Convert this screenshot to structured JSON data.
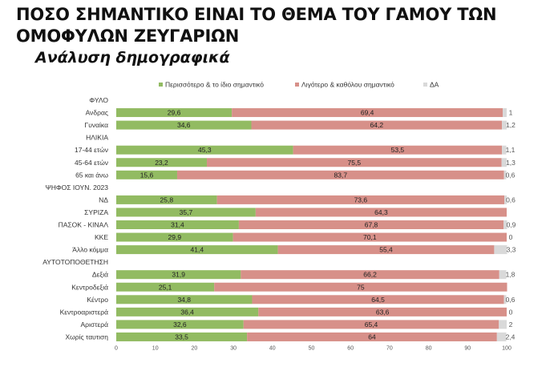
{
  "header": {
    "title_line1": "ΠΟΣΟ ΣΗΜΑΝΤΙΚΟ ΕΙΝΑΙ ΤΟ ΘΕΜΑ ΤΟΥ ΓΑΜΟΥ ΤΩΝ",
    "title_line2": "ΟΜΟΦΥΛΩΝ ΖΕΥΓΑΡΙΩΝ",
    "subtitle": "Ανάλυση δημογραφικά"
  },
  "chart_data": {
    "type": "bar",
    "orientation": "horizontal",
    "stacked": true,
    "xlim": [
      0,
      100
    ],
    "x_ticks": [
      0,
      10,
      20,
      30,
      40,
      50,
      60,
      70,
      80,
      90,
      100
    ],
    "legend_position": "top",
    "series": [
      {
        "name": "Περισσότερο & το ίδιο σημαντικό",
        "color": "#92bb62"
      },
      {
        "name": "Λιγότερο & καθόλου σημαντικό",
        "color": "#d79089"
      },
      {
        "name": "ΔΑ",
        "color": "#d9d9d9"
      }
    ],
    "rows": [
      {
        "label": "ΦΥΛΟ",
        "group_header": true
      },
      {
        "label": "Ανδρας",
        "values": [
          29.6,
          69.4,
          1
        ],
        "labels": [
          "29,6",
          "69,4",
          "1"
        ]
      },
      {
        "label": "Γυναίκα",
        "values": [
          34.6,
          64.2,
          1.2
        ],
        "labels": [
          "34,6",
          "64,2",
          "1,2"
        ]
      },
      {
        "label": "ΗΛΙΚΙΑ",
        "group_header": true
      },
      {
        "label": "17-44 ετών",
        "values": [
          45.3,
          53.5,
          1.1
        ],
        "labels": [
          "45,3",
          "53,5",
          "1,1"
        ]
      },
      {
        "label": "45-64 ετών",
        "values": [
          23.2,
          75.5,
          1.3
        ],
        "labels": [
          "23,2",
          "75,5",
          "1,3"
        ]
      },
      {
        "label": "65 και άνω",
        "values": [
          15.6,
          83.7,
          0.6
        ],
        "labels": [
          "15,6",
          "83,7",
          "0,6"
        ]
      },
      {
        "label": "ΨΗΦΟΣ ΙΟΥΝ. 2023",
        "group_header": true
      },
      {
        "label": "ΝΔ",
        "values": [
          25.8,
          73.6,
          0.6
        ],
        "labels": [
          "25,8",
          "73,6",
          "0,6"
        ]
      },
      {
        "label": "ΣΥΡΙΖΑ",
        "values": [
          35.7,
          64.3,
          0
        ],
        "labels": [
          "35,7",
          "64,3",
          ""
        ]
      },
      {
        "label": "ΠΑΣΟΚ - ΚΙΝΑΛ",
        "values": [
          31.4,
          67.8,
          0.9
        ],
        "labels": [
          "31,4",
          "67,8",
          "0,9"
        ]
      },
      {
        "label": "ΚΚΕ",
        "values": [
          29.9,
          70.1,
          0
        ],
        "labels": [
          "29,9",
          "70,1",
          "0"
        ]
      },
      {
        "label": "Άλλο κόμμα",
        "values": [
          41.4,
          55.4,
          3.3
        ],
        "labels": [
          "41,4",
          "55,4",
          "3,3"
        ]
      },
      {
        "label": "ΑΥΤΟΤΟΠΟΘΕΤΗΣΗ",
        "group_header": true
      },
      {
        "label": "Δεξιά",
        "values": [
          31.9,
          66.2,
          1.8
        ],
        "labels": [
          "31,9",
          "66,2",
          "1,8"
        ]
      },
      {
        "label": "Κεντροδεξιά",
        "values": [
          25.1,
          75,
          0
        ],
        "labels": [
          "25,1",
          "75",
          ""
        ]
      },
      {
        "label": "Κέντρο",
        "values": [
          34.8,
          64.5,
          0.6
        ],
        "labels": [
          "34,8",
          "64,5",
          "0,6"
        ]
      },
      {
        "label": "Κεντροαριστερά",
        "values": [
          36.4,
          63.6,
          0
        ],
        "labels": [
          "36,4",
          "63,6",
          "0"
        ]
      },
      {
        "label": "Αριστερά",
        "values": [
          32.6,
          65.4,
          2
        ],
        "labels": [
          "32,6",
          "65,4",
          "2"
        ]
      },
      {
        "label": "Χωρίς ταυτιση",
        "values": [
          33.5,
          64,
          2.4
        ],
        "labels": [
          "33,5",
          "64",
          "2,4"
        ]
      }
    ]
  }
}
